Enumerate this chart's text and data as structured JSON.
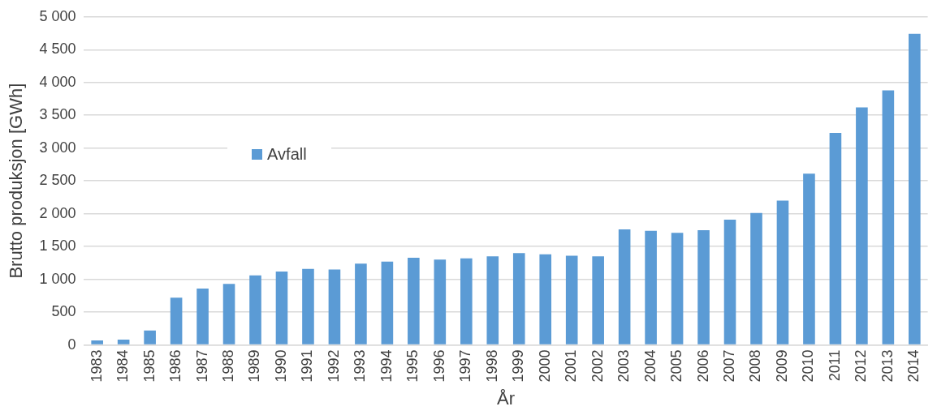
{
  "chart_data": {
    "type": "bar",
    "xlabel": "År",
    "ylabel": "Brutto produksjon [GWh]",
    "categories": [
      "1983",
      "1984",
      "1985",
      "1986",
      "1987",
      "1988",
      "1989",
      "1990",
      "1991",
      "1992",
      "1993",
      "1994",
      "1995",
      "1996",
      "1997",
      "1998",
      "1999",
      "2000",
      "2001",
      "2002",
      "2003",
      "2004",
      "2005",
      "2006",
      "2007",
      "2008",
      "2009",
      "2010",
      "2011",
      "2012",
      "2013",
      "2014"
    ],
    "series": [
      {
        "name": "Avfall",
        "color": "#5b9bd5",
        "values": [
          70,
          80,
          220,
          720,
          860,
          930,
          1060,
          1120,
          1160,
          1150,
          1240,
          1270,
          1330,
          1300,
          1320,
          1350,
          1400,
          1380,
          1360,
          1350,
          1760,
          1740,
          1710,
          1750,
          1910,
          2010,
          2200,
          2610,
          3230,
          3620,
          3880,
          4740
        ]
      }
    ],
    "ylim": [
      0,
      5000
    ],
    "yticks": [
      0,
      500,
      {
        "value": 1000,
        "label": "1 000"
      },
      {
        "value": 1500,
        "label": "1 500"
      },
      {
        "value": 2000,
        "label": "2 000"
      },
      {
        "value": 2500,
        "label": "2 500"
      },
      {
        "value": 3000,
        "label": "3 000"
      },
      {
        "value": 3500,
        "label": "3 500"
      },
      {
        "value": 4000,
        "label": "4 000"
      },
      {
        "value": 4500,
        "label": "4 500"
      },
      {
        "value": 5000,
        "label": "5 000"
      }
    ],
    "grid": "y",
    "legend": "left"
  }
}
